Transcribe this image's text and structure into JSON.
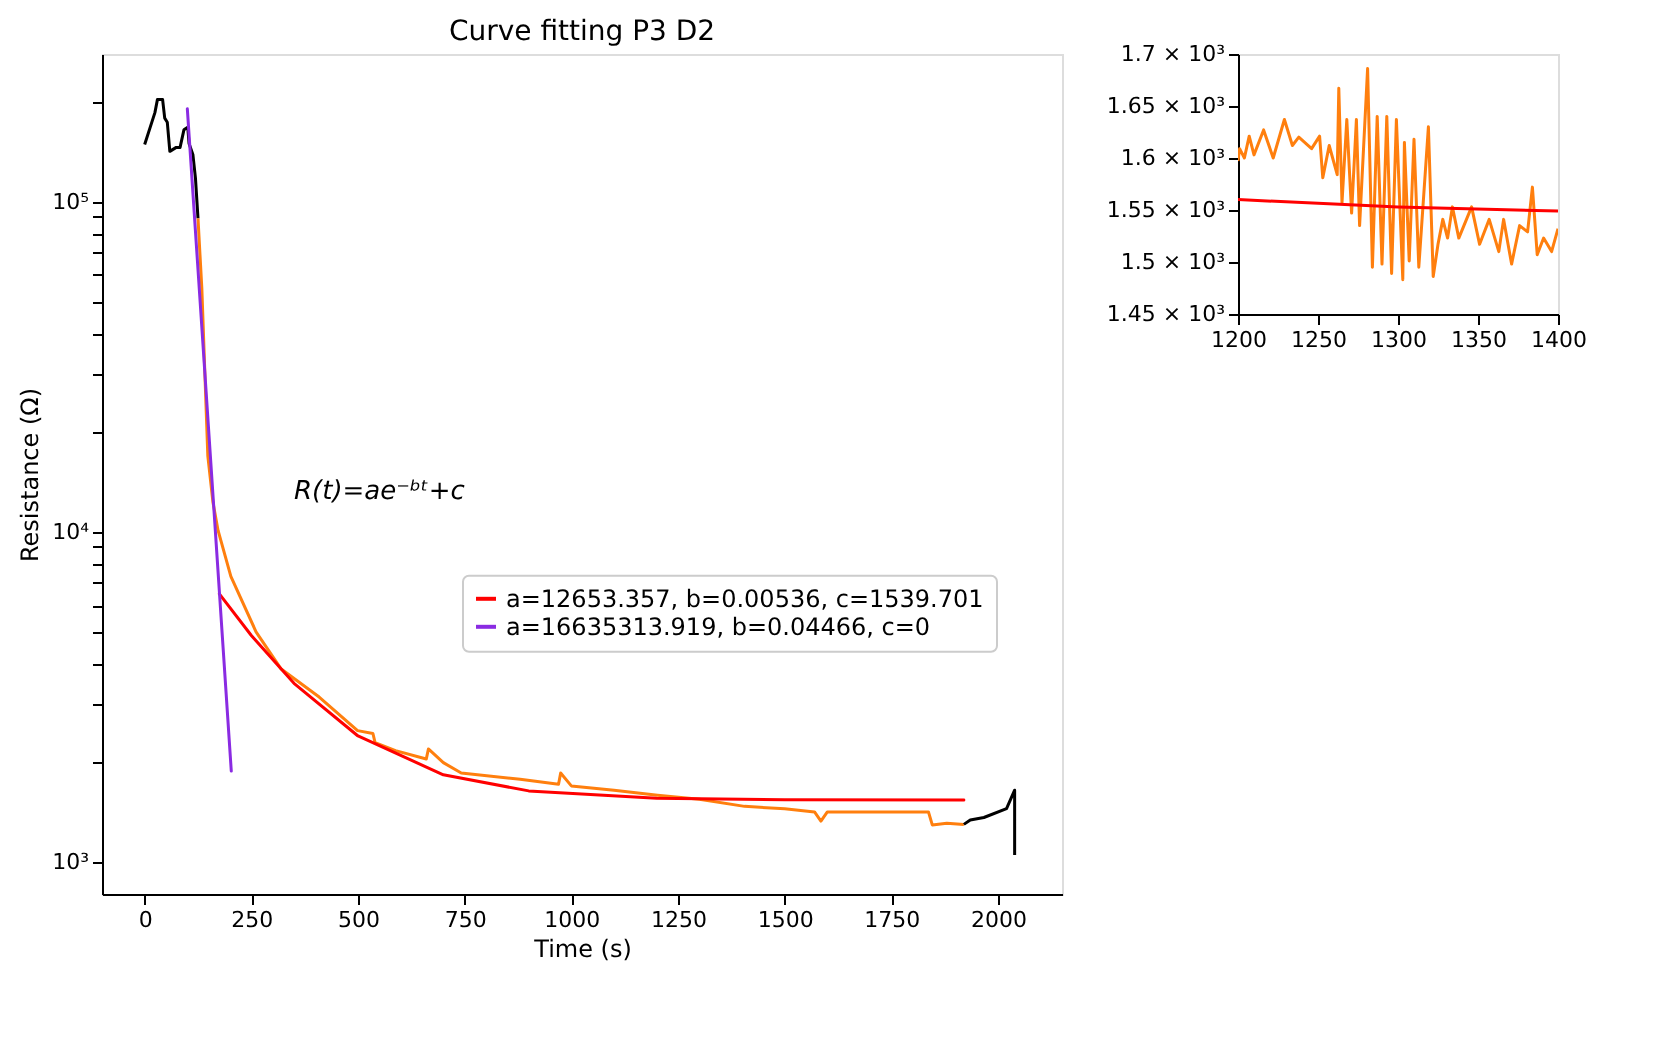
{
  "chart_data": [
    {
      "type": "line",
      "title": "Curve fitting P3 D2",
      "xlabel": "Time (s)",
      "ylabel": "Resistance (Ω)",
      "log": "y",
      "grid": false,
      "legend": "right",
      "xlim": [
        -100,
        2150
      ],
      "xticks": [
        0,
        250,
        500,
        750,
        1000,
        1250,
        1500,
        1750,
        2000
      ],
      "ylim": [
        800,
        280000
      ],
      "yticks": [
        {
          "value": 1000,
          "label": "10³"
        },
        {
          "value": 2000,
          "label": null
        },
        {
          "value": 3000,
          "label": null
        },
        {
          "value": 4000,
          "label": null
        },
        {
          "value": 5000,
          "label": null
        },
        {
          "value": 6000,
          "label": null
        },
        {
          "value": 7000,
          "label": null
        },
        {
          "value": 8000,
          "label": null
        },
        {
          "value": 9000,
          "label": null
        },
        {
          "value": 10000,
          "label": "10⁴"
        },
        {
          "value": 20000,
          "label": null
        },
        {
          "value": 30000,
          "label": null
        },
        {
          "value": 40000,
          "label": null
        },
        {
          "value": 50000,
          "label": null
        },
        {
          "value": 60000,
          "label": null
        },
        {
          "value": 70000,
          "label": null
        },
        {
          "value": 80000,
          "label": null
        },
        {
          "value": 90000,
          "label": null
        },
        {
          "value": 100000,
          "label": "10⁵"
        },
        {
          "value": 200000,
          "label": null
        }
      ],
      "annotations": [
        "R(t)=ae⁻ᵇᵗ+c"
      ],
      "series": [
        {
          "color": "#000000",
          "x": [
            0,
            24,
            30,
            42,
            47,
            53,
            59,
            74,
            83,
            92,
            101,
            104,
            113,
            119,
            125
          ],
          "values": [
            149000,
            186000,
            204000,
            204000,
            179000,
            174000,
            142000,
            146000,
            146000,
            165000,
            168000,
            150000,
            139000,
            118000,
            89000
          ]
        },
        {
          "color": "#ff7f0e",
          "x": [
            125,
            134,
            148,
            160,
            172,
            202,
            261,
            320,
            409,
            499,
            535,
            540,
            588,
            660,
            665,
            700,
            742,
            880,
            970,
            975,
            1000,
            1100,
            1202,
            1300,
            1406,
            1500,
            1570,
            1585,
            1600,
            1652,
            1750,
            1837,
            1846,
            1880,
            1920
          ],
          "values": [
            89000,
            54500,
            17000,
            12300,
            10100,
            7330,
            4980,
            3840,
            3160,
            2500,
            2450,
            2300,
            2175,
            2050,
            2200,
            2000,
            1860,
            1780,
            1720,
            1860,
            1700,
            1650,
            1594,
            1550,
            1474,
            1450,
            1418,
            1330,
            1418,
            1418,
            1418,
            1418,
            1295,
            1310,
            1300
          ]
        },
        {
          "color": "#000000",
          "x": [
            1920,
            1935,
            1967,
            2020,
            2039,
            2039
          ],
          "values": [
            1300,
            1340,
            1364,
            1450,
            1650,
            1050
          ]
        },
        {
          "name": "a=12653.357, b=0.00536, c=1539.701",
          "color": "#ff0000",
          "x": [
            175,
            250,
            350,
            500,
            700,
            900,
            1200,
            1500,
            1920
          ],
          "values": [
            6490,
            4854,
            3477,
            2408,
            1837,
            1642,
            1560,
            1544,
            1540
          ]
        },
        {
          "name": "a=16635313.919, b=0.04466, c=0",
          "color": "#8a2be2",
          "x": [
            100,
            203
          ],
          "values": [
            191000,
            1885
          ]
        }
      ]
    },
    {
      "type": "line",
      "grid": false,
      "xlim": [
        1200,
        1400
      ],
      "xticks": [
        1200,
        1250,
        1300,
        1350,
        1400
      ],
      "ylim": [
        1450,
        1700
      ],
      "yticks": [
        {
          "value": 1450,
          "label": "1.45 × 10³"
        },
        {
          "value": 1500,
          "label": "1.5 × 10³"
        },
        {
          "value": 1550,
          "label": "1.55 × 10³"
        },
        {
          "value": 1600,
          "label": "1.6 × 10³"
        },
        {
          "value": 1650,
          "label": "1.65 × 10³"
        },
        {
          "value": 1700,
          "label": "1.7 × 10³"
        }
      ],
      "series": [
        {
          "color": "#ff7f0e",
          "x": [
            1200,
            1201,
            1204,
            1207,
            1210,
            1216,
            1222,
            1229,
            1234,
            1238,
            1246,
            1251,
            1253,
            1257,
            1262,
            1263,
            1265,
            1268,
            1271,
            1274,
            1276,
            1281,
            1284,
            1287,
            1290,
            1293,
            1296,
            1299,
            1303,
            1304,
            1307,
            1310,
            1313,
            1319,
            1322,
            1325,
            1328,
            1331,
            1334,
            1338,
            1346,
            1351,
            1357,
            1363,
            1366,
            1371,
            1376,
            1381,
            1384,
            1387,
            1391,
            1396,
            1400
          ],
          "values": [
            1597,
            1609,
            1600,
            1621,
            1603,
            1627,
            1600,
            1637,
            1612,
            1620,
            1609,
            1621,
            1581,
            1612,
            1584,
            1667,
            1557,
            1637,
            1547,
            1637,
            1535,
            1686,
            1495,
            1640,
            1498,
            1640,
            1489,
            1637,
            1483,
            1615,
            1501,
            1618,
            1495,
            1630,
            1486,
            1517,
            1541,
            1523,
            1553,
            1523,
            1553,
            1517,
            1541,
            1510,
            1541,
            1498,
            1535,
            1529,
            1572,
            1507,
            1523,
            1510,
            1532
          ]
        },
        {
          "color": "#ff0000",
          "x": [
            1200,
            1300,
            1400
          ],
          "values": [
            1560,
            1553,
            1549
          ]
        }
      ]
    }
  ]
}
